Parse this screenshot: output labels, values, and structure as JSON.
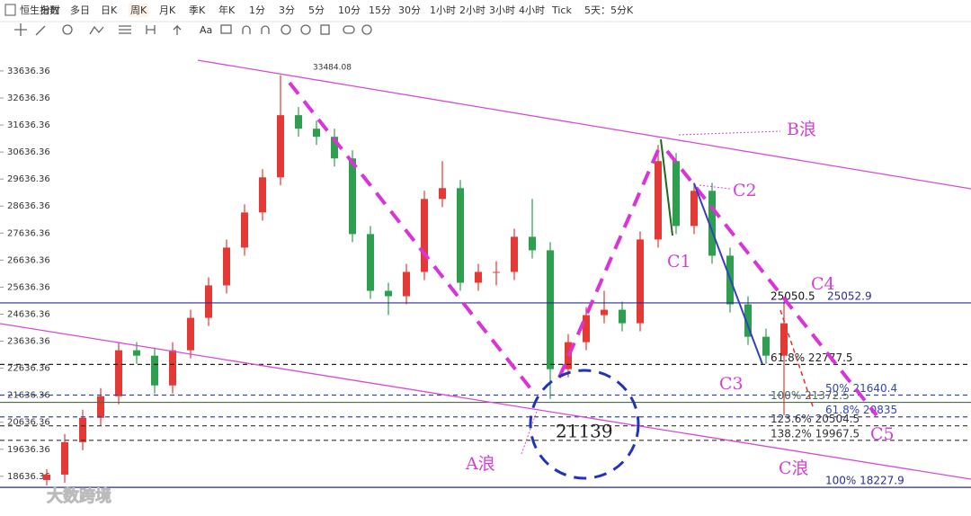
{
  "toolbar": {
    "periods": [
      "恒生指数",
      "分时",
      "多日",
      "日K",
      "周K",
      "月K",
      "季K",
      "年K",
      "1分",
      "3分",
      "5分",
      "10分",
      "15分",
      "30分",
      "1小时",
      "2小时",
      "3小时",
      "4小时",
      "Tick",
      "5天：5分K"
    ],
    "active": 4,
    "tools": [
      "Aa"
    ]
  },
  "chart_data": {
    "type": "candlestick",
    "up_color": "#e53935",
    "down_color": "#2e9e4f",
    "ylim": [
      17300,
      34200
    ],
    "yticks": [
      18636.36,
      19636.36,
      20636.36,
      21636.36,
      22636.36,
      23636.36,
      24636.36,
      25636.36,
      26636.36,
      27636.36,
      28636.36,
      29636.36,
      30636.36,
      31636.36,
      32636.36,
      33636.36
    ],
    "grid": false,
    "candles": [
      [
        18500,
        18900,
        18300,
        18700
      ],
      [
        18700,
        20200,
        18400,
        19900
      ],
      [
        19900,
        21100,
        19600,
        20800
      ],
      [
        20800,
        21900,
        20500,
        21600
      ],
      [
        21600,
        23600,
        21300,
        23300
      ],
      [
        23300,
        23600,
        22800,
        23100
      ],
      [
        23100,
        23400,
        21700,
        22000
      ],
      [
        22000,
        23600,
        21700,
        23300
      ],
      [
        23300,
        24800,
        23000,
        24500
      ],
      [
        24500,
        26000,
        24200,
        25700
      ],
      [
        25700,
        27400,
        25400,
        27100
      ],
      [
        27100,
        28700,
        26800,
        28400
      ],
      [
        28400,
        30000,
        28100,
        29700
      ],
      [
        29700,
        33484.08,
        29400,
        32000
      ],
      [
        32000,
        32300,
        31200,
        31500
      ],
      [
        31500,
        31800,
        30900,
        31200
      ],
      [
        31200,
        31500,
        30100,
        30400
      ],
      [
        30400,
        30700,
        27300,
        27600
      ],
      [
        27600,
        27900,
        25200,
        25500
      ],
      [
        25500,
        25800,
        24600,
        25300
      ],
      [
        25300,
        26500,
        25000,
        26200
      ],
      [
        26200,
        29200,
        25900,
        28900
      ],
      [
        28900,
        30300,
        28600,
        29300
      ],
      [
        29300,
        29600,
        25500,
        25800
      ],
      [
        25800,
        26500,
        25500,
        26200
      ],
      [
        26200,
        26600,
        25700,
        26200
      ],
      [
        26200,
        27800,
        25900,
        27500
      ],
      [
        27500,
        28900,
        26700,
        27000
      ],
      [
        27000,
        27300,
        21500,
        22600
      ],
      [
        22600,
        23900,
        22300,
        23600
      ],
      [
        23600,
        24900,
        23300,
        24600
      ],
      [
        24600,
        25500,
        24300,
        24800
      ],
      [
        24800,
        25100,
        24000,
        24300
      ],
      [
        24300,
        27700,
        24000,
        27400
      ],
      [
        27400,
        30900,
        27100,
        30300
      ],
      [
        30300,
        30600,
        27600,
        27900
      ],
      [
        27900,
        29500,
        27600,
        29200
      ],
      [
        29200,
        29500,
        26500,
        26800
      ],
      [
        26800,
        27100,
        24700,
        25000
      ],
      [
        25000,
        25300,
        23500,
        23800
      ],
      [
        23800,
        24100,
        22800,
        23100
      ],
      [
        23100,
        25100,
        20900,
        24300
      ]
    ],
    "levels": [
      {
        "value": 25050.5,
        "style": "none",
        "color": "#111"
      },
      {
        "value": 25052.9,
        "style": "solid",
        "color": "#2b2b9a"
      },
      {
        "value": 22777.5,
        "label": "61.8% 22777.5",
        "style": "dashed",
        "color": "#222"
      },
      {
        "value": 21640.4,
        "label": "50% 21640.4",
        "style": "dashed",
        "color": "#3344bb"
      },
      {
        "value": 21372.5,
        "label": "100% 21372.5",
        "style": "solid",
        "color": "#4d6b4d"
      },
      {
        "value": 20835,
        "label": "61.8% 20835",
        "style": "dashed",
        "color": "#3344bb"
      },
      {
        "value": 20504.5,
        "label": "123.6% 20504.5",
        "style": "dashed",
        "color": "#333"
      },
      {
        "value": 19967.5,
        "label": "138.2% 19967.5",
        "style": "dashed",
        "color": "#333"
      },
      {
        "value": 18227.9,
        "label": "100% 18227.9",
        "style": "solid",
        "color": "#2b2b9a"
      }
    ]
  },
  "annotations": {
    "peak": "33484.08",
    "b_wave": "B浪",
    "c2": "C2",
    "c1": "C1",
    "c4": "C4",
    "c3": "C3",
    "c5": "C5",
    "c_wave": "C浪",
    "a_wave": "A浪",
    "low": "21139",
    "watermark": "大数跨境"
  }
}
